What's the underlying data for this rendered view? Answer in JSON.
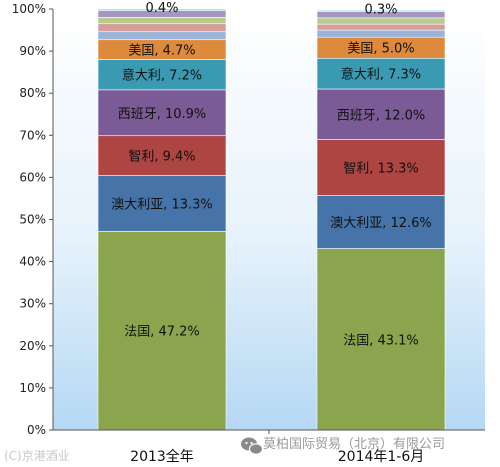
{
  "chart_data": {
    "type": "bar",
    "stacked": true,
    "categories": [
      "2013全年",
      "2014年1-6月"
    ],
    "ylim": [
      0,
      100
    ],
    "yticks": [
      "0%",
      "10%",
      "20%",
      "30%",
      "40%",
      "50%",
      "60%",
      "70%",
      "80%",
      "90%",
      "100%"
    ],
    "grid": false,
    "series": [
      {
        "name": "法国",
        "values": [
          47.2,
          43.1
        ],
        "color": "#8aa54e"
      },
      {
        "name": "澳大利亚",
        "values": [
          13.3,
          12.6
        ],
        "color": "#4774a8"
      },
      {
        "name": "智利",
        "values": [
          9.4,
          13.3
        ],
        "color": "#ad4542"
      },
      {
        "name": "西班牙",
        "values": [
          10.9,
          12.0
        ],
        "color": "#7b5b96"
      },
      {
        "name": "意大利",
        "values": [
          7.2,
          7.3
        ],
        "color": "#3a9ab2"
      },
      {
        "name": "美国",
        "values": [
          4.7,
          5.0
        ],
        "color": "#de8a3c"
      },
      {
        "name": "",
        "values": [
          1.9,
          1.7
        ],
        "color": "#9cb4d8"
      },
      {
        "name": "",
        "values": [
          1.9,
          1.4
        ],
        "color": "#d69c9b"
      },
      {
        "name": "",
        "values": [
          1.5,
          1.5
        ],
        "color": "#b7cc8c"
      },
      {
        "name": "",
        "values": [
          1.6,
          1.5
        ],
        "color": "#a795c1"
      },
      {
        "name": "",
        "values": [
          0.4,
          0.3
        ],
        "color": "#8fcfe0"
      }
    ],
    "data_labels": [
      [
        "法国, 47.2%",
        "法国, 43.1%"
      ],
      [
        "澳大利亚, 13.3%",
        "澳大利亚, 12.6%"
      ],
      [
        "智利, 9.4%",
        "智利, 13.3%"
      ],
      [
        "西班牙, 10.9%",
        "西班牙, 12.0%"
      ],
      [
        "意大利, 7.2%",
        "意大利, 7.3%"
      ],
      [
        "美国, 4.7%",
        "美国, 5.0%"
      ],
      [
        "",
        ""
      ],
      [
        "",
        ""
      ],
      [
        "",
        ""
      ],
      [
        "",
        ""
      ],
      [
        "0.4%",
        "0.3%"
      ]
    ]
  },
  "watermark": "(C)京港酒业",
  "brand": {
    "text": "莫柏国际贸易（北京）有限公司",
    "icon": "wechat-icon",
    "icon_color": "#8a8a8a"
  }
}
